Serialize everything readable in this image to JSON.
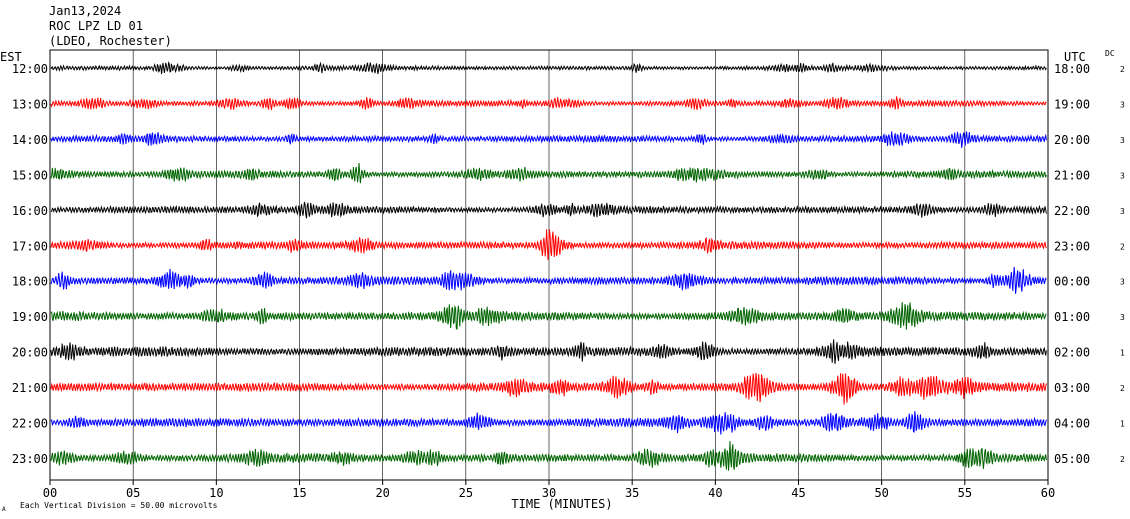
{
  "header": {
    "date": "Jan13,2024",
    "station": "ROC LPZ LD 01",
    "network": "(LDEO, Rochester)"
  },
  "chart_data": {
    "type": "line",
    "title": "ROC LPZ LD 01",
    "subtitle": "(LDEO, Rochester)",
    "left_axis_title": "EST",
    "right_axis_title": "UTC",
    "dc_label": "DC",
    "xlabel": "TIME (MINUTES)",
    "xlim": [
      0,
      60
    ],
    "x_ticks": [
      "00",
      "05",
      "10",
      "15",
      "20",
      "25",
      "30",
      "35",
      "40",
      "45",
      "50",
      "55",
      "60"
    ],
    "grid": true,
    "scale_note": "Each Vertical Division = 50.00 microvolts",
    "corner_mark": "A",
    "series_colors": [
      "#000000",
      "#ff0000",
      "#0000ff",
      "#006400"
    ],
    "rows": [
      {
        "est": "12:00",
        "utc": "18:00",
        "dc": "2",
        "amplitude": 2.0
      },
      {
        "est": "13:00",
        "utc": "19:00",
        "dc": "3",
        "amplitude": 2.6
      },
      {
        "est": "14:00",
        "utc": "20:00",
        "dc": "3",
        "amplitude": 3.0
      },
      {
        "est": "15:00",
        "utc": "21:00",
        "dc": "3",
        "amplitude": 3.2
      },
      {
        "est": "16:00",
        "utc": "22:00",
        "dc": "3",
        "amplitude": 3.4
      },
      {
        "est": "17:00",
        "utc": "23:00",
        "dc": "2",
        "amplitude": 3.6
      },
      {
        "est": "18:00",
        "utc": "00:00",
        "dc": "3",
        "amplitude": 3.8
      },
      {
        "est": "19:00",
        "utc": "01:00",
        "dc": "3",
        "amplitude": 4.2
      },
      {
        "est": "20:00",
        "utc": "02:00",
        "dc": "1",
        "amplitude": 4.4
      },
      {
        "est": "21:00",
        "utc": "03:00",
        "dc": "2",
        "amplitude": 4.2
      },
      {
        "est": "22:00",
        "utc": "04:00",
        "dc": "1",
        "amplitude": 4.0
      },
      {
        "est": "23:00",
        "utc": "05:00",
        "dc": "2",
        "amplitude": 4.0
      }
    ]
  }
}
